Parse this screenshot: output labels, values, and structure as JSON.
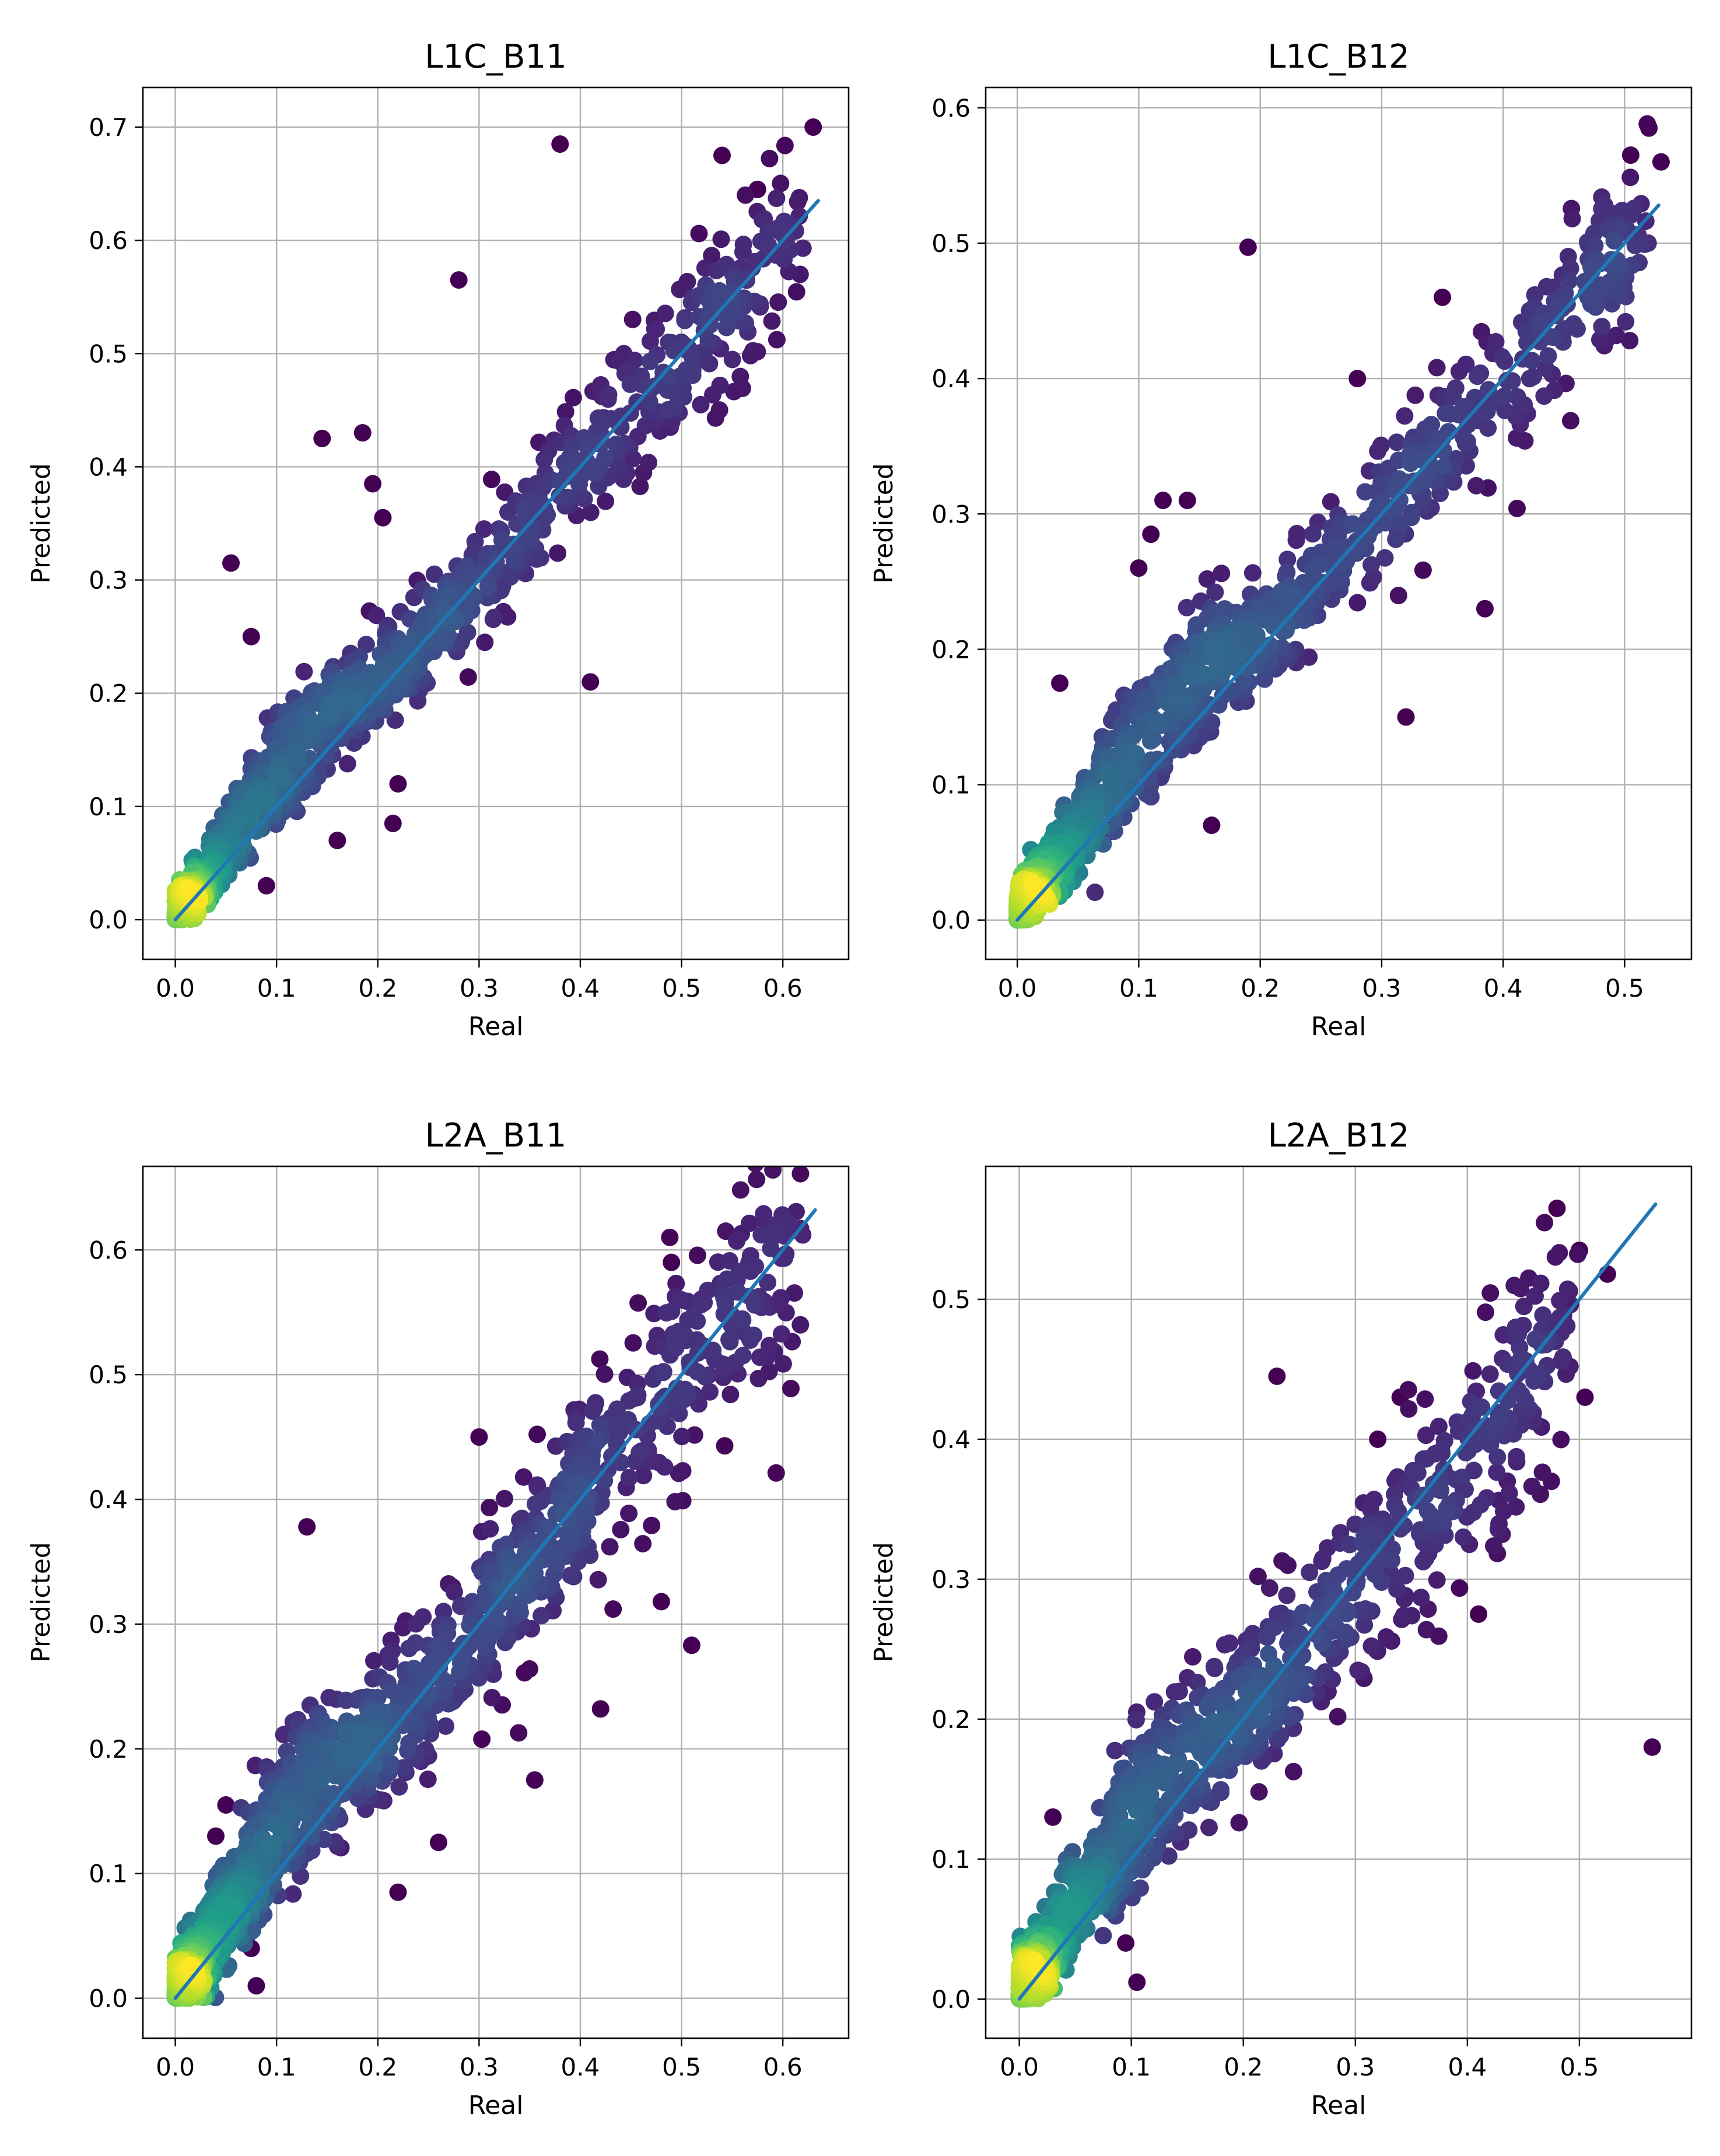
{
  "chart_data": [
    {
      "type": "scatter",
      "title": "L1C_B11",
      "xlabel": "Real",
      "ylabel": "Predicted",
      "xlim": [
        -0.032,
        0.665
      ],
      "ylim": [
        -0.035,
        0.735
      ],
      "xticks": [
        0.0,
        0.1,
        0.2,
        0.3,
        0.4,
        0.5,
        0.6
      ],
      "xtick_labels": [
        "0.0",
        "0.1",
        "0.2",
        "0.3",
        "0.4",
        "0.5",
        "0.6"
      ],
      "yticks": [
        0.0,
        0.1,
        0.2,
        0.3,
        0.4,
        0.5,
        0.6,
        0.7
      ],
      "ytick_labels": [
        "0.0",
        "0.1",
        "0.2",
        "0.3",
        "0.4",
        "0.5",
        "0.6",
        "0.7"
      ],
      "grid": true,
      "colormap": "viridis (point density)",
      "fit_line": {
        "x": [
          0.0,
          0.635
        ],
        "y": [
          0.0,
          0.635
        ]
      },
      "outliers": [
        [
          0.38,
          0.685
        ],
        [
          0.28,
          0.565
        ],
        [
          0.145,
          0.425
        ],
        [
          0.185,
          0.43
        ],
        [
          0.195,
          0.385
        ],
        [
          0.055,
          0.315
        ],
        [
          0.41,
          0.21
        ],
        [
          0.075,
          0.25
        ],
        [
          0.16,
          0.07
        ],
        [
          0.09,
          0.03
        ],
        [
          0.215,
          0.085
        ],
        [
          0.22,
          0.12
        ],
        [
          0.63,
          0.7
        ],
        [
          0.54,
          0.675
        ],
        [
          0.575,
          0.645
        ],
        [
          0.205,
          0.355
        ]
      ],
      "distribution": {
        "points": 1100,
        "x_max": 0.62,
        "slope": 1.0,
        "spread": 0.024,
        "upper_bias": 0.018
      }
    },
    {
      "type": "scatter",
      "title": "L1C_B12",
      "xlabel": "Real",
      "ylabel": "Predicted",
      "xlim": [
        -0.026,
        0.555
      ],
      "ylim": [
        -0.029,
        0.615
      ],
      "xticks": [
        0.0,
        0.1,
        0.2,
        0.3,
        0.4,
        0.5
      ],
      "xtick_labels": [
        "0.0",
        "0.1",
        "0.2",
        "0.3",
        "0.4",
        "0.5"
      ],
      "yticks": [
        0.0,
        0.1,
        0.2,
        0.3,
        0.4,
        0.5,
        0.6
      ],
      "ytick_labels": [
        "0.0",
        "0.1",
        "0.2",
        "0.3",
        "0.4",
        "0.5",
        "0.6"
      ],
      "grid": true,
      "colormap": "viridis (point density)",
      "fit_line": {
        "x": [
          0.0,
          0.528
        ],
        "y": [
          0.0,
          0.528
        ]
      },
      "outliers": [
        [
          0.19,
          0.497
        ],
        [
          0.385,
          0.23
        ],
        [
          0.16,
          0.07
        ],
        [
          0.12,
          0.31
        ],
        [
          0.14,
          0.31
        ],
        [
          0.11,
          0.285
        ],
        [
          0.1,
          0.26
        ],
        [
          0.035,
          0.175
        ],
        [
          0.075,
          0.065
        ],
        [
          0.52,
          0.585
        ],
        [
          0.505,
          0.565
        ],
        [
          0.53,
          0.56
        ],
        [
          0.35,
          0.46
        ],
        [
          0.28,
          0.4
        ],
        [
          0.32,
          0.15
        ]
      ],
      "distribution": {
        "points": 1050,
        "x_max": 0.52,
        "slope": 1.0,
        "spread": 0.022,
        "upper_bias": 0.02
      }
    },
    {
      "type": "scatter",
      "title": "L2A_B11",
      "xlabel": "Real",
      "ylabel": "Predicted",
      "xlim": [
        -0.032,
        0.665
      ],
      "ylim": [
        -0.032,
        0.667
      ],
      "xticks": [
        0.0,
        0.1,
        0.2,
        0.3,
        0.4,
        0.5,
        0.6
      ],
      "xtick_labels": [
        "0.0",
        "0.1",
        "0.2",
        "0.3",
        "0.4",
        "0.5",
        "0.6"
      ],
      "yticks": [
        0.0,
        0.1,
        0.2,
        0.3,
        0.4,
        0.5,
        0.6
      ],
      "ytick_labels": [
        "0.0",
        "0.1",
        "0.2",
        "0.3",
        "0.4",
        "0.5",
        "0.6"
      ],
      "grid": true,
      "colormap": "viridis (point density)",
      "fit_line": {
        "x": [
          0.0,
          0.632
        ],
        "y": [
          0.0,
          0.632
        ]
      },
      "outliers": [
        [
          0.13,
          0.378
        ],
        [
          0.48,
          0.318
        ],
        [
          0.51,
          0.283
        ],
        [
          0.42,
          0.232
        ],
        [
          0.26,
          0.125
        ],
        [
          0.22,
          0.085
        ],
        [
          0.08,
          0.01
        ],
        [
          0.075,
          0.04
        ],
        [
          0.355,
          0.175
        ],
        [
          0.49,
          0.59
        ],
        [
          0.6,
          0.62
        ],
        [
          0.05,
          0.155
        ],
        [
          0.04,
          0.13
        ],
        [
          0.3,
          0.45
        ]
      ],
      "distribution": {
        "points": 1300,
        "x_max": 0.62,
        "slope": 1.0,
        "spread": 0.03,
        "upper_bias": 0.022
      }
    },
    {
      "type": "scatter",
      "title": "L2A_B12",
      "xlabel": "Real",
      "ylabel": "Predicted",
      "xlim": [
        -0.03,
        0.6
      ],
      "ylim": [
        -0.028,
        0.595
      ],
      "xticks": [
        0.0,
        0.1,
        0.2,
        0.3,
        0.4,
        0.5
      ],
      "xtick_labels": [
        "0.0",
        "0.1",
        "0.2",
        "0.3",
        "0.4",
        "0.5"
      ],
      "yticks": [
        0.0,
        0.1,
        0.2,
        0.3,
        0.4,
        0.5
      ],
      "ytick_labels": [
        "0.0",
        "0.1",
        "0.2",
        "0.3",
        "0.4",
        "0.5"
      ],
      "grid": true,
      "colormap": "viridis (point density)",
      "fit_line": {
        "x": [
          0.0,
          0.568
        ],
        "y": [
          0.0,
          0.568
        ]
      },
      "outliers": [
        [
          0.565,
          0.18
        ],
        [
          0.23,
          0.445
        ],
        [
          0.505,
          0.43
        ],
        [
          0.105,
          0.012
        ],
        [
          0.095,
          0.04
        ],
        [
          0.48,
          0.565
        ],
        [
          0.5,
          0.535
        ],
        [
          0.525,
          0.518
        ],
        [
          0.41,
          0.275
        ],
        [
          0.34,
          0.43
        ],
        [
          0.32,
          0.4
        ],
        [
          0.03,
          0.13
        ]
      ],
      "distribution": {
        "points": 1200,
        "x_max": 0.5,
        "slope": 0.98,
        "spread": 0.028,
        "upper_bias": 0.018
      }
    }
  ]
}
